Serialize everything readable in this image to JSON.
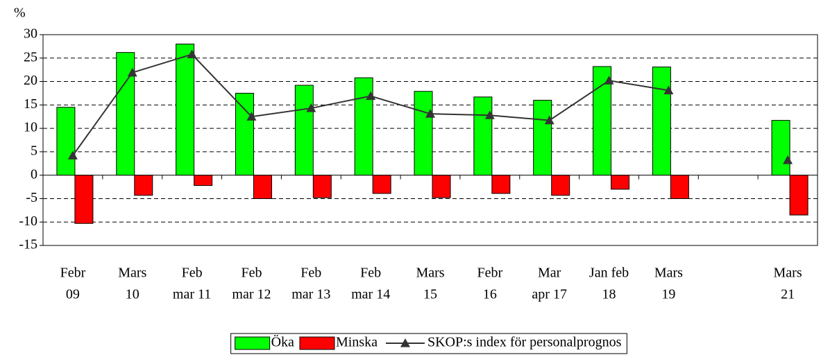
{
  "chart_data": {
    "type": "bar",
    "y_unit_label": "%",
    "categories": [
      [
        "Febr",
        "09"
      ],
      [
        "Mars",
        "10"
      ],
      [
        "Feb",
        "mar 11"
      ],
      [
        "Feb",
        "mar 12"
      ],
      [
        "Feb",
        "mar 13"
      ],
      [
        "Feb",
        "mar 14"
      ],
      [
        "Mars",
        "15"
      ],
      [
        "Febr",
        "16"
      ],
      [
        "Mar",
        "apr 17"
      ],
      [
        "Jan feb",
        "18"
      ],
      [
        "Mars",
        "19"
      ],
      null,
      [
        "Mars",
        "21"
      ]
    ],
    "series": [
      {
        "name": "Öka",
        "type": "bar",
        "color": "#00ff00",
        "values": [
          14.5,
          26.2,
          28,
          17.5,
          19.2,
          20.8,
          17.9,
          16.7,
          16,
          23.2,
          23.1,
          null,
          11.7
        ]
      },
      {
        "name": "Minska",
        "type": "bar",
        "color": "#ff0000",
        "values": [
          -10.3,
          -4.3,
          -2.2,
          -5,
          -4.8,
          -3.9,
          -4.8,
          -3.9,
          -4.3,
          -3,
          -5,
          null,
          -8.5
        ]
      },
      {
        "name": "SKOP:s index för personalprognos",
        "type": "line",
        "color": "#333333",
        "values": [
          4.2,
          21.9,
          25.8,
          12.5,
          14.3,
          16.9,
          13.1,
          12.8,
          11.7,
          20.2,
          18.1,
          null,
          3.2
        ]
      }
    ],
    "ylim": [
      -15,
      30
    ],
    "yticks": [
      -15,
      -10,
      -5,
      0,
      5,
      10,
      15,
      20,
      25,
      30
    ],
    "grid": true,
    "legend": "bottom"
  }
}
